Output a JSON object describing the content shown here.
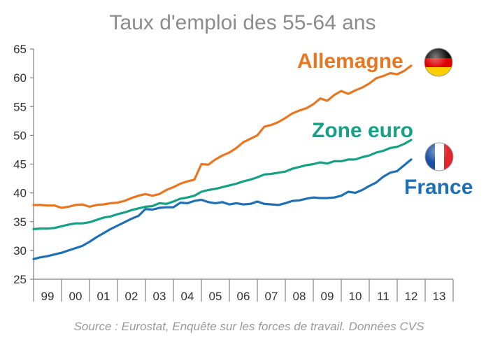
{
  "chart_data": {
    "type": "line",
    "title": "Taux d'emploi des 55-64 ans",
    "source": "Source : Eurostat, Enquête sur les forces de travail. Données CVS",
    "ylim": [
      25,
      65
    ],
    "yticks": [
      25,
      30,
      35,
      40,
      45,
      50,
      55,
      60,
      65
    ],
    "xlim": [
      1999,
      2014
    ],
    "categories": [
      "99",
      "00",
      "01",
      "02",
      "03",
      "04",
      "05",
      "06",
      "07",
      "08",
      "09",
      "10",
      "11",
      "12",
      "13"
    ],
    "grid": false,
    "legend": "inline labels",
    "series": [
      {
        "name": "Allemagne",
        "color": "#E87722",
        "flag": "germany-flag",
        "x": [
          1999.0,
          1999.25,
          1999.5,
          1999.75,
          2000.0,
          2000.25,
          2000.5,
          2000.75,
          2001.0,
          2001.25,
          2001.5,
          2001.75,
          2002.0,
          2002.25,
          2002.5,
          2002.75,
          2003.0,
          2003.25,
          2003.5,
          2003.75,
          2004.0,
          2004.25,
          2004.5,
          2004.75,
          2005.0,
          2005.25,
          2005.5,
          2005.75,
          2006.0,
          2006.25,
          2006.5,
          2006.75,
          2007.0,
          2007.25,
          2007.5,
          2007.75,
          2008.0,
          2008.25,
          2008.5,
          2008.75,
          2009.0,
          2009.25,
          2009.5,
          2009.75,
          2010.0,
          2010.25,
          2010.5,
          2010.75,
          2011.0,
          2011.25,
          2011.5,
          2011.75,
          2012.0,
          2012.25,
          2012.5
        ],
        "values": [
          37.9,
          37.9,
          37.8,
          37.8,
          37.4,
          37.6,
          37.9,
          38.0,
          37.6,
          37.9,
          38.0,
          38.2,
          38.3,
          38.6,
          39.1,
          39.5,
          39.8,
          39.5,
          39.8,
          40.5,
          41.0,
          41.6,
          42.0,
          42.3,
          45.0,
          44.9,
          45.8,
          46.5,
          47.0,
          47.8,
          48.8,
          49.4,
          50.0,
          51.5,
          51.8,
          52.3,
          53.0,
          53.8,
          54.3,
          54.7,
          55.4,
          56.4,
          56.0,
          57.0,
          57.7,
          57.2,
          57.8,
          58.3,
          59.0,
          59.9,
          60.3,
          60.8,
          60.6,
          61.2,
          62.1
        ],
        "value_label": "Allemagne"
      },
      {
        "name": "Zone euro",
        "color": "#16A085",
        "x": [
          1999.0,
          1999.25,
          1999.5,
          1999.75,
          2000.0,
          2000.25,
          2000.5,
          2000.75,
          2001.0,
          2001.25,
          2001.5,
          2001.75,
          2002.0,
          2002.25,
          2002.5,
          2002.75,
          2003.0,
          2003.25,
          2003.5,
          2003.75,
          2004.0,
          2004.25,
          2004.5,
          2004.75,
          2005.0,
          2005.25,
          2005.5,
          2005.75,
          2006.0,
          2006.25,
          2006.5,
          2006.75,
          2007.0,
          2007.25,
          2007.5,
          2007.75,
          2008.0,
          2008.25,
          2008.5,
          2008.75,
          2009.0,
          2009.25,
          2009.5,
          2009.75,
          2010.0,
          2010.25,
          2010.5,
          2010.75,
          2011.0,
          2011.25,
          2011.5,
          2011.75,
          2012.0,
          2012.25,
          2012.5
        ],
        "values": [
          33.7,
          33.8,
          33.8,
          33.9,
          34.2,
          34.5,
          34.7,
          34.7,
          34.9,
          35.3,
          35.7,
          35.9,
          36.3,
          36.6,
          37.0,
          37.3,
          37.6,
          37.7,
          38.2,
          38.1,
          38.5,
          39.0,
          39.2,
          39.5,
          40.2,
          40.5,
          40.7,
          41.0,
          41.3,
          41.6,
          42.0,
          42.3,
          42.7,
          43.2,
          43.3,
          43.5,
          43.7,
          44.2,
          44.5,
          44.8,
          45.0,
          45.3,
          45.1,
          45.5,
          45.5,
          45.8,
          45.8,
          46.2,
          46.5,
          47.0,
          47.3,
          47.8,
          48.0,
          48.5,
          49.2
        ],
        "value_label": "Zone euro"
      },
      {
        "name": "France",
        "color": "#1F6FB5",
        "flag": "france-flag",
        "x": [
          1999.0,
          1999.25,
          1999.5,
          1999.75,
          2000.0,
          2000.25,
          2000.5,
          2000.75,
          2001.0,
          2001.25,
          2001.5,
          2001.75,
          2002.0,
          2002.25,
          2002.5,
          2002.75,
          2003.0,
          2003.25,
          2003.5,
          2003.75,
          2004.0,
          2004.25,
          2004.5,
          2004.75,
          2005.0,
          2005.25,
          2005.5,
          2005.75,
          2006.0,
          2006.25,
          2006.5,
          2006.75,
          2007.0,
          2007.25,
          2007.5,
          2007.75,
          2008.0,
          2008.25,
          2008.5,
          2008.75,
          2009.0,
          2009.25,
          2009.5,
          2009.75,
          2010.0,
          2010.25,
          2010.5,
          2010.75,
          2011.0,
          2011.25,
          2011.5,
          2011.75,
          2012.0,
          2012.25,
          2012.5
        ],
        "values": [
          28.5,
          28.8,
          29.0,
          29.3,
          29.6,
          30.0,
          30.4,
          30.8,
          31.5,
          32.3,
          33.0,
          33.7,
          34.3,
          34.9,
          35.5,
          36.0,
          37.2,
          37.1,
          37.4,
          37.5,
          37.5,
          38.3,
          38.2,
          38.6,
          38.8,
          38.4,
          38.2,
          38.4,
          38.0,
          38.2,
          38.0,
          38.1,
          38.5,
          38.1,
          38.0,
          37.9,
          38.2,
          38.6,
          38.7,
          39.0,
          39.2,
          39.1,
          39.1,
          39.2,
          39.5,
          40.2,
          40.0,
          40.5,
          41.2,
          41.8,
          42.8,
          43.5,
          43.8,
          44.8,
          45.8
        ],
        "value_label": "France"
      }
    ]
  }
}
